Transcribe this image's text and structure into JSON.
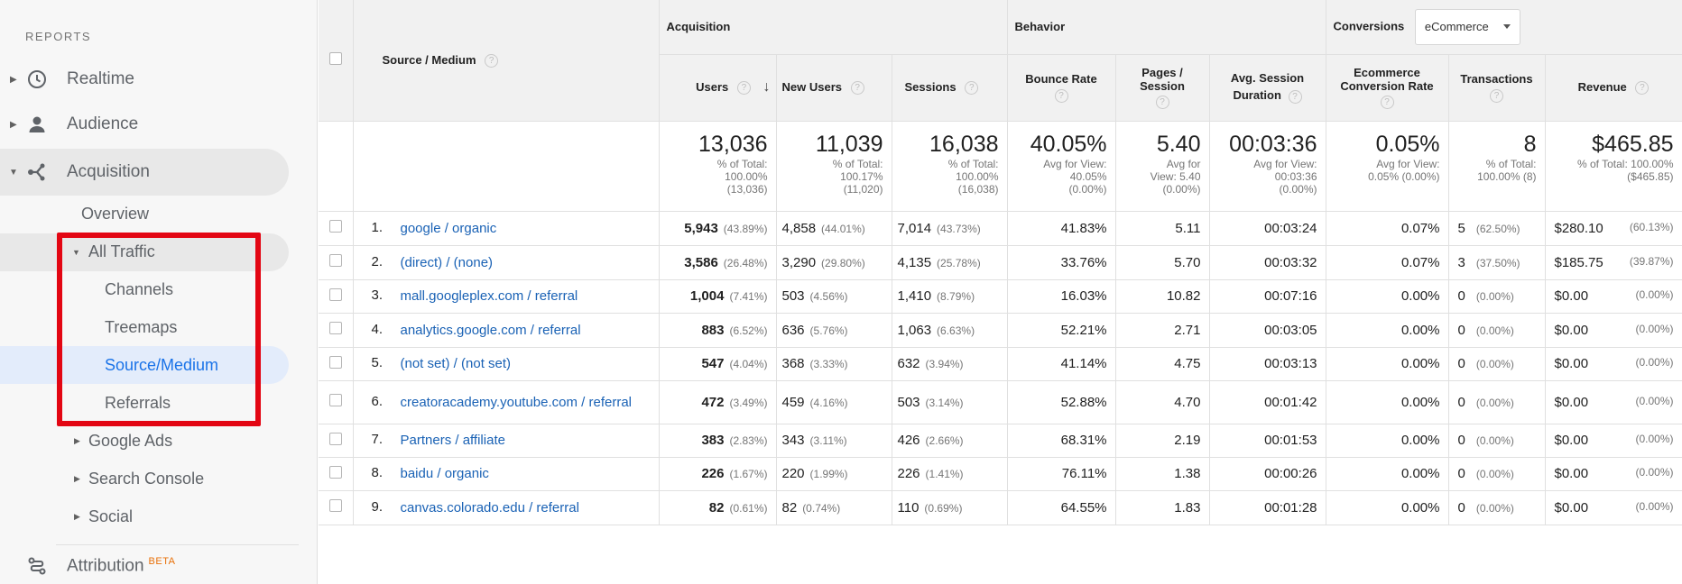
{
  "sidebar": {
    "reports_label": "REPORTS",
    "items": [
      {
        "label": "Realtime",
        "icon": "clock-icon"
      },
      {
        "label": "Audience",
        "icon": "person-icon"
      },
      {
        "label": "Acquisition",
        "icon": "acquisition-icon"
      }
    ],
    "acquisition_children": {
      "overview": "Overview",
      "all_traffic": "All Traffic",
      "all_traffic_children": [
        "Channels",
        "Treemaps",
        "Source/Medium",
        "Referrals"
      ],
      "google_ads": "Google Ads",
      "search_console": "Search Console",
      "social": "Social"
    },
    "attribution": {
      "label": "Attribution",
      "badge": "BETA",
      "icon": "attribution-icon"
    },
    "active_item": "Source/Medium"
  },
  "table": {
    "groups": {
      "acquisition": "Acquisition",
      "behavior": "Behavior",
      "conversions": "Conversions",
      "conversion_select": "eCommerce"
    },
    "columns": {
      "source_medium": "Source / Medium",
      "users": "Users",
      "new_users": "New Users",
      "sessions": "Sessions",
      "bounce_rate": "Bounce Rate",
      "pages_l1": "Pages /",
      "pages_l2": "Session",
      "duration_l1": "Avg. Session",
      "duration_l2": "Duration",
      "ecr_l1": "Ecommerce",
      "ecr_l2": "Conversion Rate",
      "transactions": "Transactions",
      "revenue": "Revenue"
    },
    "help_glyph": "?",
    "sort_glyph": "↓",
    "totals": {
      "users": {
        "value": "13,036",
        "l1": "% of Total:",
        "l2": "100.00%",
        "l3": "(13,036)"
      },
      "new_users": {
        "value": "11,039",
        "l1": "% of Total:",
        "l2": "100.17%",
        "l3": "(11,020)"
      },
      "sessions": {
        "value": "16,038",
        "l1": "% of Total:",
        "l2": "100.00%",
        "l3": "(16,038)"
      },
      "bounce_rate": {
        "value": "40.05%",
        "l1": "Avg for View:",
        "l2": "40.05%",
        "l3": "(0.00%)"
      },
      "pages": {
        "value": "5.40",
        "l1": "Avg for",
        "l2": "View: 5.40",
        "l3": "(0.00%)"
      },
      "duration": {
        "value": "00:03:36",
        "l1": "Avg for View:",
        "l2": "00:03:36",
        "l3": "(0.00%)"
      },
      "ecr": {
        "value": "0.05%",
        "l1": "Avg for View:",
        "l2": "0.05% (0.00%)"
      },
      "transactions": {
        "value": "8",
        "l1": "% of Total:",
        "l2": "100.00% (8)"
      },
      "revenue": {
        "value": "$465.85",
        "l1": "% of Total: 100.00%",
        "l2": "($465.85)"
      }
    },
    "rows": [
      {
        "idx": "1.",
        "src": "google / organic",
        "users": "5,943",
        "users_pct": "(43.89%)",
        "new": "4,858",
        "new_pct": "(44.01%)",
        "sess": "7,014",
        "sess_pct": "(43.73%)",
        "bounce": "41.83%",
        "pages": "5.11",
        "dur": "00:03:24",
        "ecr": "0.07%",
        "trans": "5",
        "trans_pct": "(62.50%)",
        "rev": "$280.10",
        "rev_pct": "(60.13%)"
      },
      {
        "idx": "2.",
        "src": "(direct) / (none)",
        "users": "3,586",
        "users_pct": "(26.48%)",
        "new": "3,290",
        "new_pct": "(29.80%)",
        "sess": "4,135",
        "sess_pct": "(25.78%)",
        "bounce": "33.76%",
        "pages": "5.70",
        "dur": "00:03:32",
        "ecr": "0.07%",
        "trans": "3",
        "trans_pct": "(37.50%)",
        "rev": "$185.75",
        "rev_pct": "(39.87%)"
      },
      {
        "idx": "3.",
        "src": "mall.googleplex.com / referral",
        "users": "1,004",
        "users_pct": "(7.41%)",
        "new": "503",
        "new_pct": "(4.56%)",
        "sess": "1,410",
        "sess_pct": "(8.79%)",
        "bounce": "16.03%",
        "pages": "10.82",
        "dur": "00:07:16",
        "ecr": "0.00%",
        "trans": "0",
        "trans_pct": "(0.00%)",
        "rev": "$0.00",
        "rev_pct": "(0.00%)"
      },
      {
        "idx": "4.",
        "src": "analytics.google.com / referral",
        "users": "883",
        "users_pct": "(6.52%)",
        "new": "636",
        "new_pct": "(5.76%)",
        "sess": "1,063",
        "sess_pct": "(6.63%)",
        "bounce": "52.21%",
        "pages": "2.71",
        "dur": "00:03:05",
        "ecr": "0.00%",
        "trans": "0",
        "trans_pct": "(0.00%)",
        "rev": "$0.00",
        "rev_pct": "(0.00%)"
      },
      {
        "idx": "5.",
        "src": "(not set) / (not set)",
        "users": "547",
        "users_pct": "(4.04%)",
        "new": "368",
        "new_pct": "(3.33%)",
        "sess": "632",
        "sess_pct": "(3.94%)",
        "bounce": "41.14%",
        "pages": "4.75",
        "dur": "00:03:13",
        "ecr": "0.00%",
        "trans": "0",
        "trans_pct": "(0.00%)",
        "rev": "$0.00",
        "rev_pct": "(0.00%)"
      },
      {
        "idx": "6.",
        "src": "creatoracademy.youtube.com / referral",
        "users": "472",
        "users_pct": "(3.49%)",
        "new": "459",
        "new_pct": "(4.16%)",
        "sess": "503",
        "sess_pct": "(3.14%)",
        "bounce": "52.88%",
        "pages": "4.70",
        "dur": "00:01:42",
        "ecr": "0.00%",
        "trans": "0",
        "trans_pct": "(0.00%)",
        "rev": "$0.00",
        "rev_pct": "(0.00%)"
      },
      {
        "idx": "7.",
        "src": "Partners / affiliate",
        "users": "383",
        "users_pct": "(2.83%)",
        "new": "343",
        "new_pct": "(3.11%)",
        "sess": "426",
        "sess_pct": "(2.66%)",
        "bounce": "68.31%",
        "pages": "2.19",
        "dur": "00:01:53",
        "ecr": "0.00%",
        "trans": "0",
        "trans_pct": "(0.00%)",
        "rev": "$0.00",
        "rev_pct": "(0.00%)"
      },
      {
        "idx": "8.",
        "src": "baidu / organic",
        "users": "226",
        "users_pct": "(1.67%)",
        "new": "220",
        "new_pct": "(1.99%)",
        "sess": "226",
        "sess_pct": "(1.41%)",
        "bounce": "76.11%",
        "pages": "1.38",
        "dur": "00:00:26",
        "ecr": "0.00%",
        "trans": "0",
        "trans_pct": "(0.00%)",
        "rev": "$0.00",
        "rev_pct": "(0.00%)"
      },
      {
        "idx": "9.",
        "src": "canvas.colorado.edu / referral",
        "users": "82",
        "users_pct": "(0.61%)",
        "new": "82",
        "new_pct": "(0.74%)",
        "sess": "110",
        "sess_pct": "(0.69%)",
        "bounce": "64.55%",
        "pages": "1.83",
        "dur": "00:01:28",
        "ecr": "0.00%",
        "trans": "0",
        "trans_pct": "(0.00%)",
        "rev": "$0.00",
        "rev_pct": "(0.00%)"
      }
    ]
  },
  "colors": {
    "link": "#1a62b5",
    "active": "#1a73e8",
    "highlight_box": "#e30613",
    "beta": "#e8710a"
  }
}
